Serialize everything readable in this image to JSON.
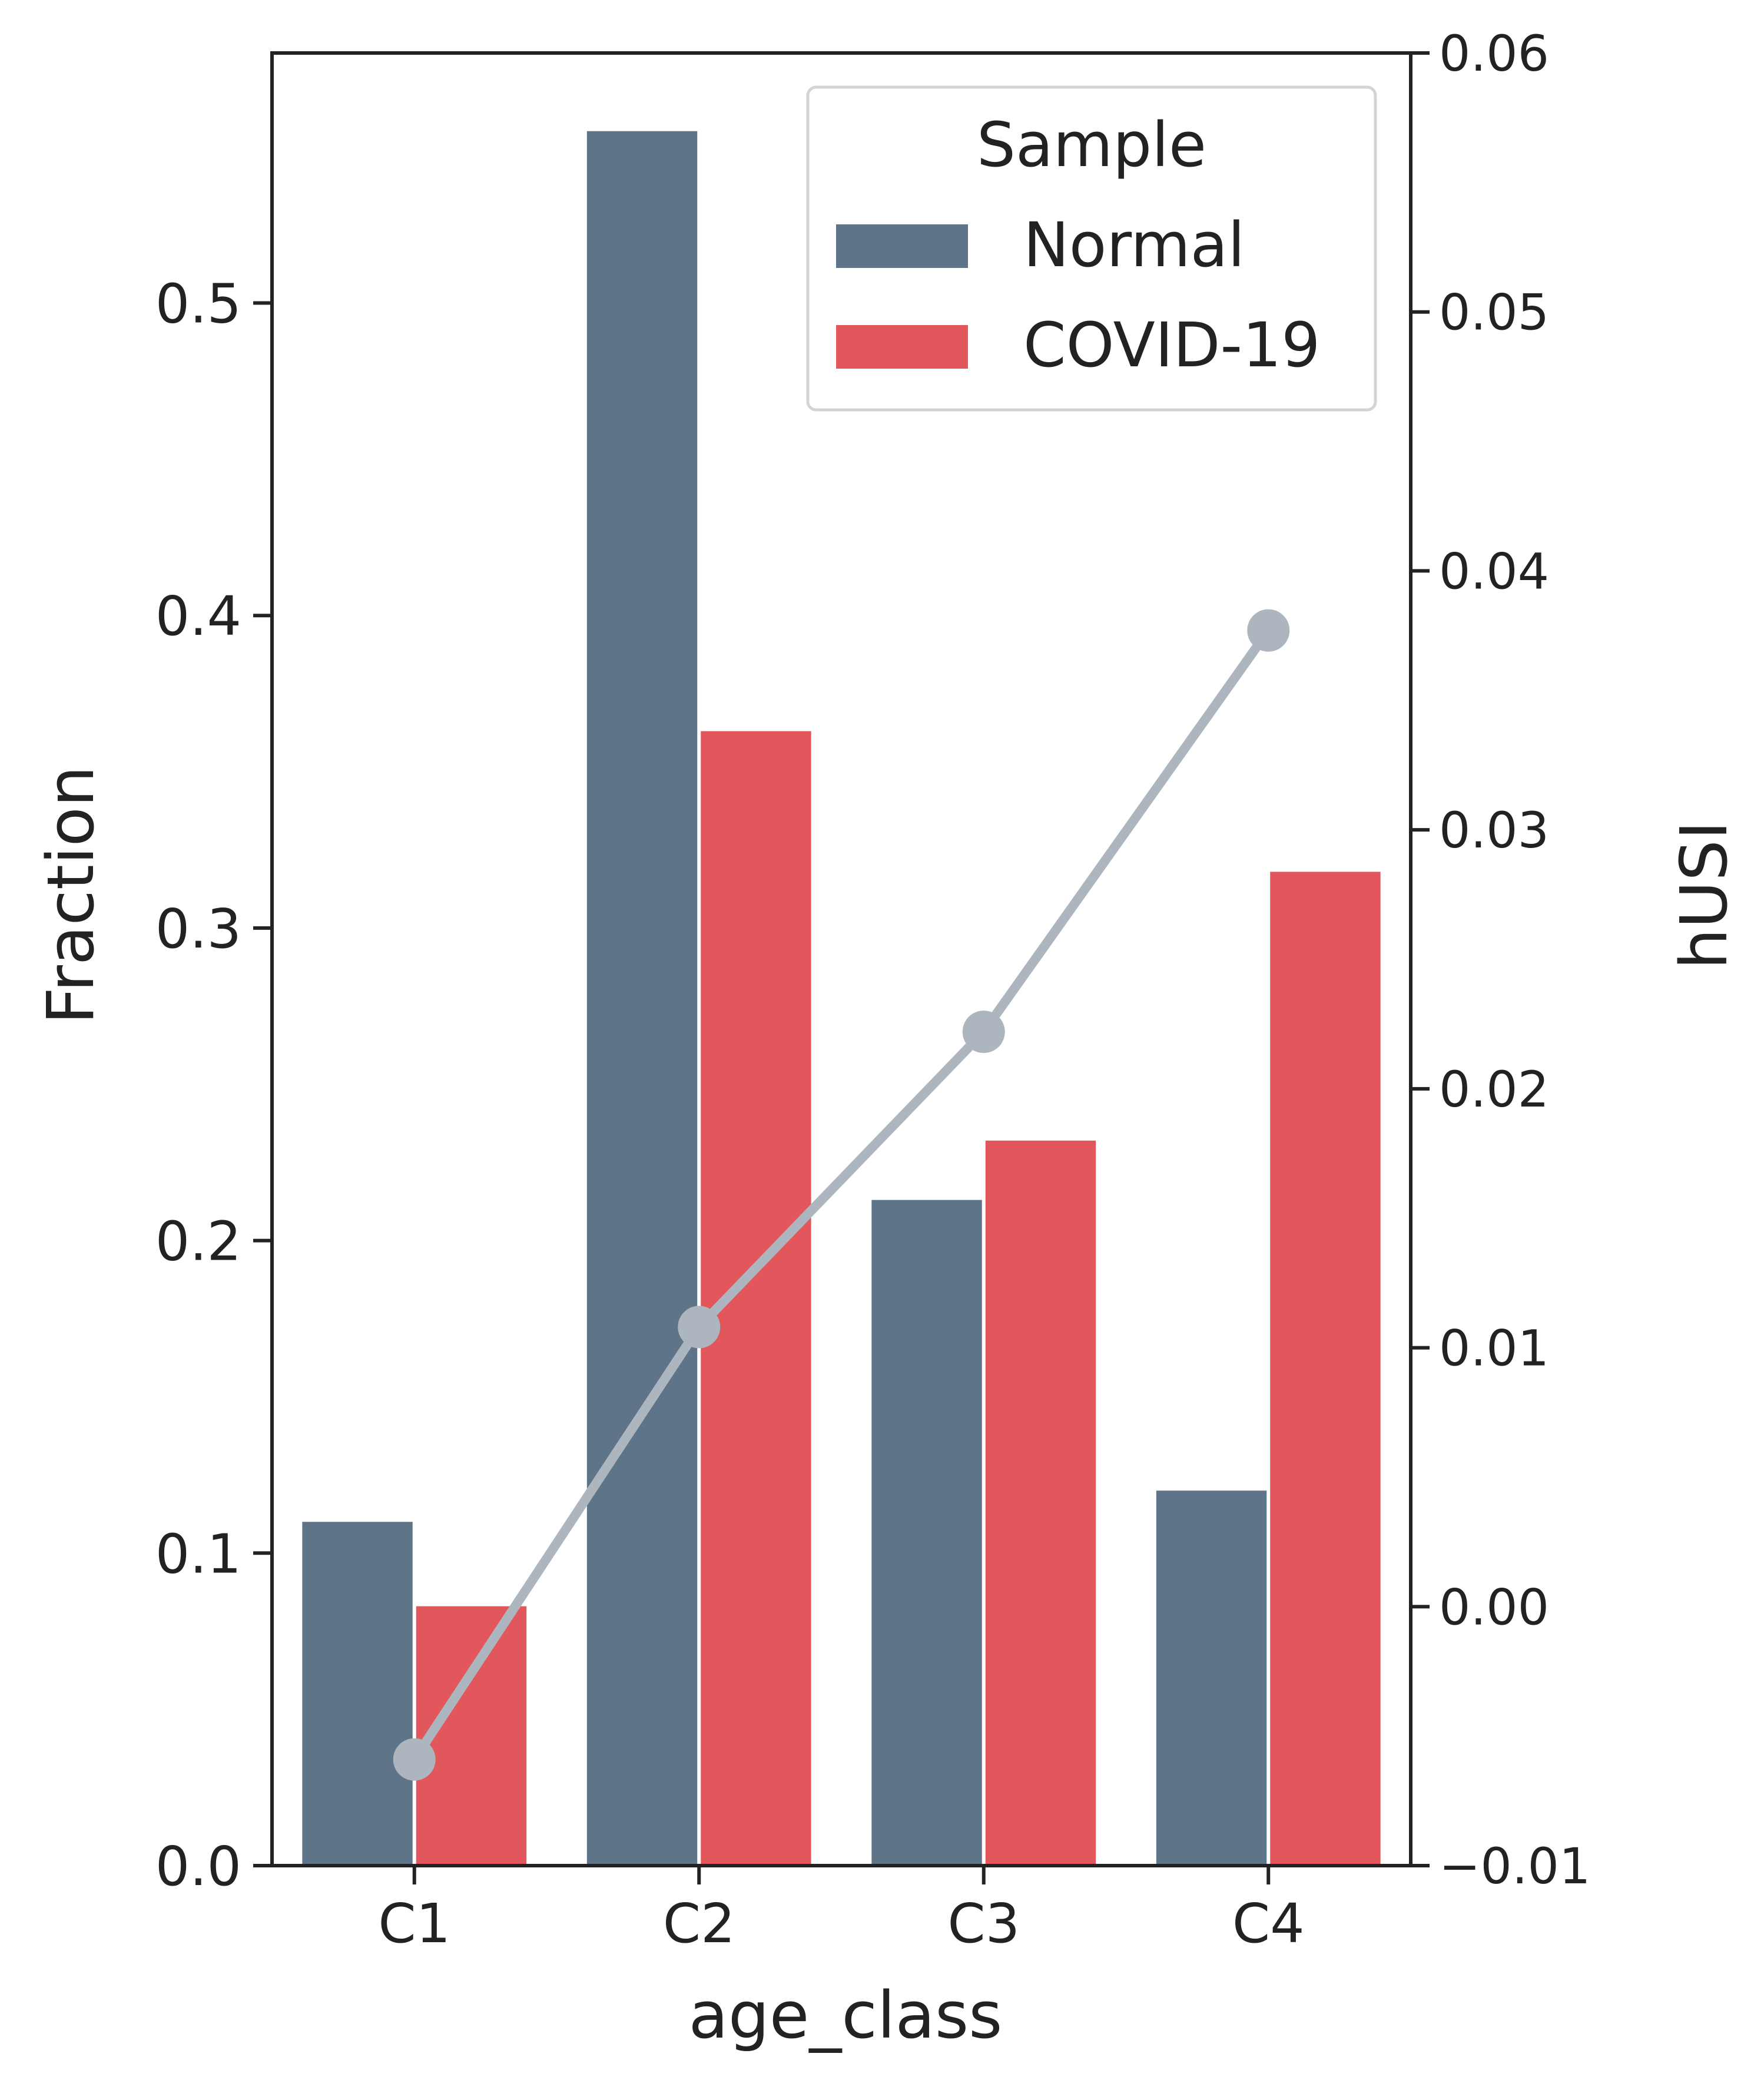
{
  "chart_data": {
    "type": "bar",
    "categories": [
      "C1",
      "C2",
      "C3",
      "C4"
    ],
    "series": [
      {
        "name": "Normal",
        "values": [
          0.11,
          0.555,
          0.213,
          0.12
        ],
        "color": "#5e7489"
      },
      {
        "name": "COVID-19",
        "values": [
          0.083,
          0.363,
          0.232,
          0.318
        ],
        "color": "#e1575c"
      }
    ],
    "line": {
      "axis": "right",
      "values": [
        -0.0059,
        0.0108,
        0.0222,
        0.0377
      ],
      "color": "#adb6bf"
    },
    "xlabel": "age_class",
    "ylabel": "Fraction",
    "ylabel_right": "hUSI",
    "ylim": [
      0,
      0.58
    ],
    "ylim_right": [
      -0.01,
      0.06
    ],
    "yticks": [
      "0.0",
      "0.1",
      "0.2",
      "0.3",
      "0.4",
      "0.5"
    ],
    "yticks_right": [
      "−0.01",
      "0.00",
      "0.01",
      "0.02",
      "0.03",
      "0.04",
      "0.05",
      "0.06"
    ],
    "legend": {
      "title": "Sample",
      "position": "top-right"
    },
    "grid": false
  }
}
